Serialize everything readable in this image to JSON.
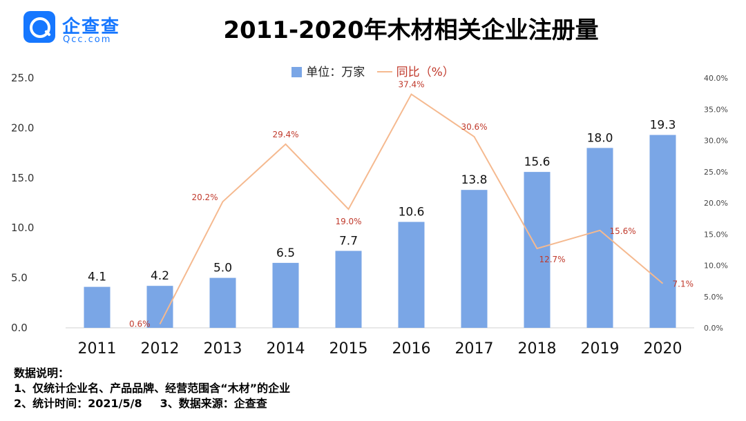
{
  "logo": {
    "name": "企查查",
    "domain": "Qcc.com"
  },
  "title": "2011-2020年木材相关企业注册量",
  "legend": {
    "bar_label": "单位：万家",
    "line_label": "同比（%）"
  },
  "notes": {
    "heading": "数据说明：",
    "line1": "1、仅统计企业名、产品品牌、经营范围含“木材”的企业",
    "line2a": "2、统计时间：2021/5/8",
    "line2b": "3、数据来源：企查查"
  },
  "chart_data": {
    "type": "bar",
    "categories": [
      "2011",
      "2012",
      "2013",
      "2014",
      "2015",
      "2016",
      "2017",
      "2018",
      "2019",
      "2020"
    ],
    "series": [
      {
        "name": "单位：万家",
        "type": "bar",
        "axis": "left",
        "values": [
          4.1,
          4.2,
          5.0,
          6.5,
          7.7,
          10.6,
          13.8,
          15.6,
          18.0,
          19.3
        ],
        "labels": [
          "4.1",
          "4.2",
          "5.0",
          "6.5",
          "7.7",
          "10.6",
          "13.8",
          "15.6",
          "18.0",
          "19.3"
        ]
      },
      {
        "name": "同比（%）",
        "type": "line",
        "axis": "right",
        "values": [
          null,
          0.6,
          20.2,
          29.4,
          19.0,
          37.4,
          30.6,
          12.7,
          15.6,
          7.1
        ],
        "labels": [
          "",
          "0.6%",
          "20.2%",
          "29.4%",
          "19.0%",
          "37.4%",
          "30.6%",
          "12.7%",
          "15.6%",
          "7.1%"
        ]
      }
    ],
    "ylim_left": [
      0,
      25
    ],
    "yticks_left": [
      "0.0",
      "5.0",
      "10.0",
      "15.0",
      "20.0",
      "25.0"
    ],
    "ylim_right": [
      0,
      40
    ],
    "yticks_right": [
      "0.0%",
      "5.0%",
      "10.0%",
      "15.0%",
      "20.0%",
      "25.0%",
      "30.0%",
      "35.0%",
      "40.0%"
    ],
    "colors": {
      "bar": "#7aa6e6",
      "line": "#f5b98f",
      "line_label": "#c0392b",
      "bar_label": "#111111"
    },
    "grid": false,
    "legend_position": "top"
  }
}
